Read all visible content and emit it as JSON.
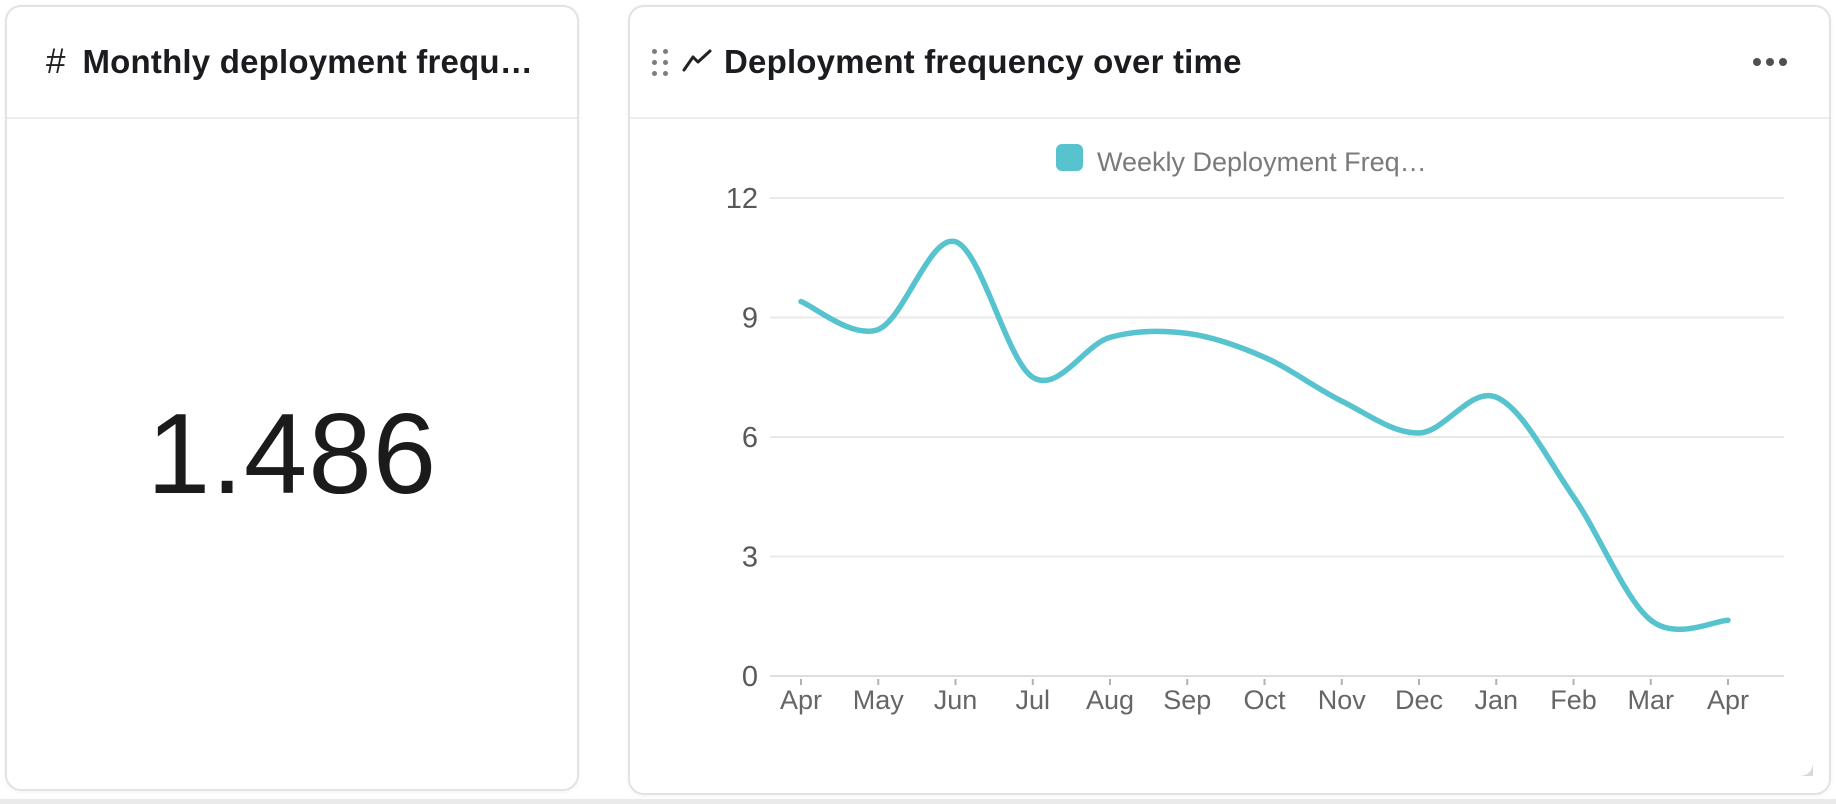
{
  "left_card": {
    "icon_glyph": "#",
    "title": "Monthly deployment frequen…",
    "value": "1.486"
  },
  "right_card": {
    "title": "Deployment frequency over time"
  },
  "chart_data": {
    "type": "line",
    "title": "Deployment frequency over time",
    "categories": [
      "Apr",
      "May",
      "Jun",
      "Jul",
      "Aug",
      "Sep",
      "Oct",
      "Nov",
      "Dec",
      "Jan",
      "Feb",
      "Mar",
      "Apr"
    ],
    "series": [
      {
        "name": "Weekly Deployment Freq…",
        "color": "#57c3cf",
        "values": [
          9.4,
          8.7,
          10.9,
          7.5,
          8.5,
          8.6,
          8.0,
          6.9,
          6.1,
          7.0,
          4.5,
          1.4,
          1.4
        ]
      }
    ],
    "xlabel": "",
    "ylabel": "",
    "ylim": [
      0,
      12
    ],
    "yticks": [
      0,
      3,
      6,
      9,
      12
    ],
    "grid": true,
    "smooth": true,
    "legend_position": "top",
    "colors": {
      "grid": "#e9e9e9",
      "axis_line": "#dedede",
      "tick": "#b0b0b0",
      "x_label_text": "#666666",
      "y_label_text": "#595959",
      "legend_text": "#7a7a7a"
    }
  }
}
